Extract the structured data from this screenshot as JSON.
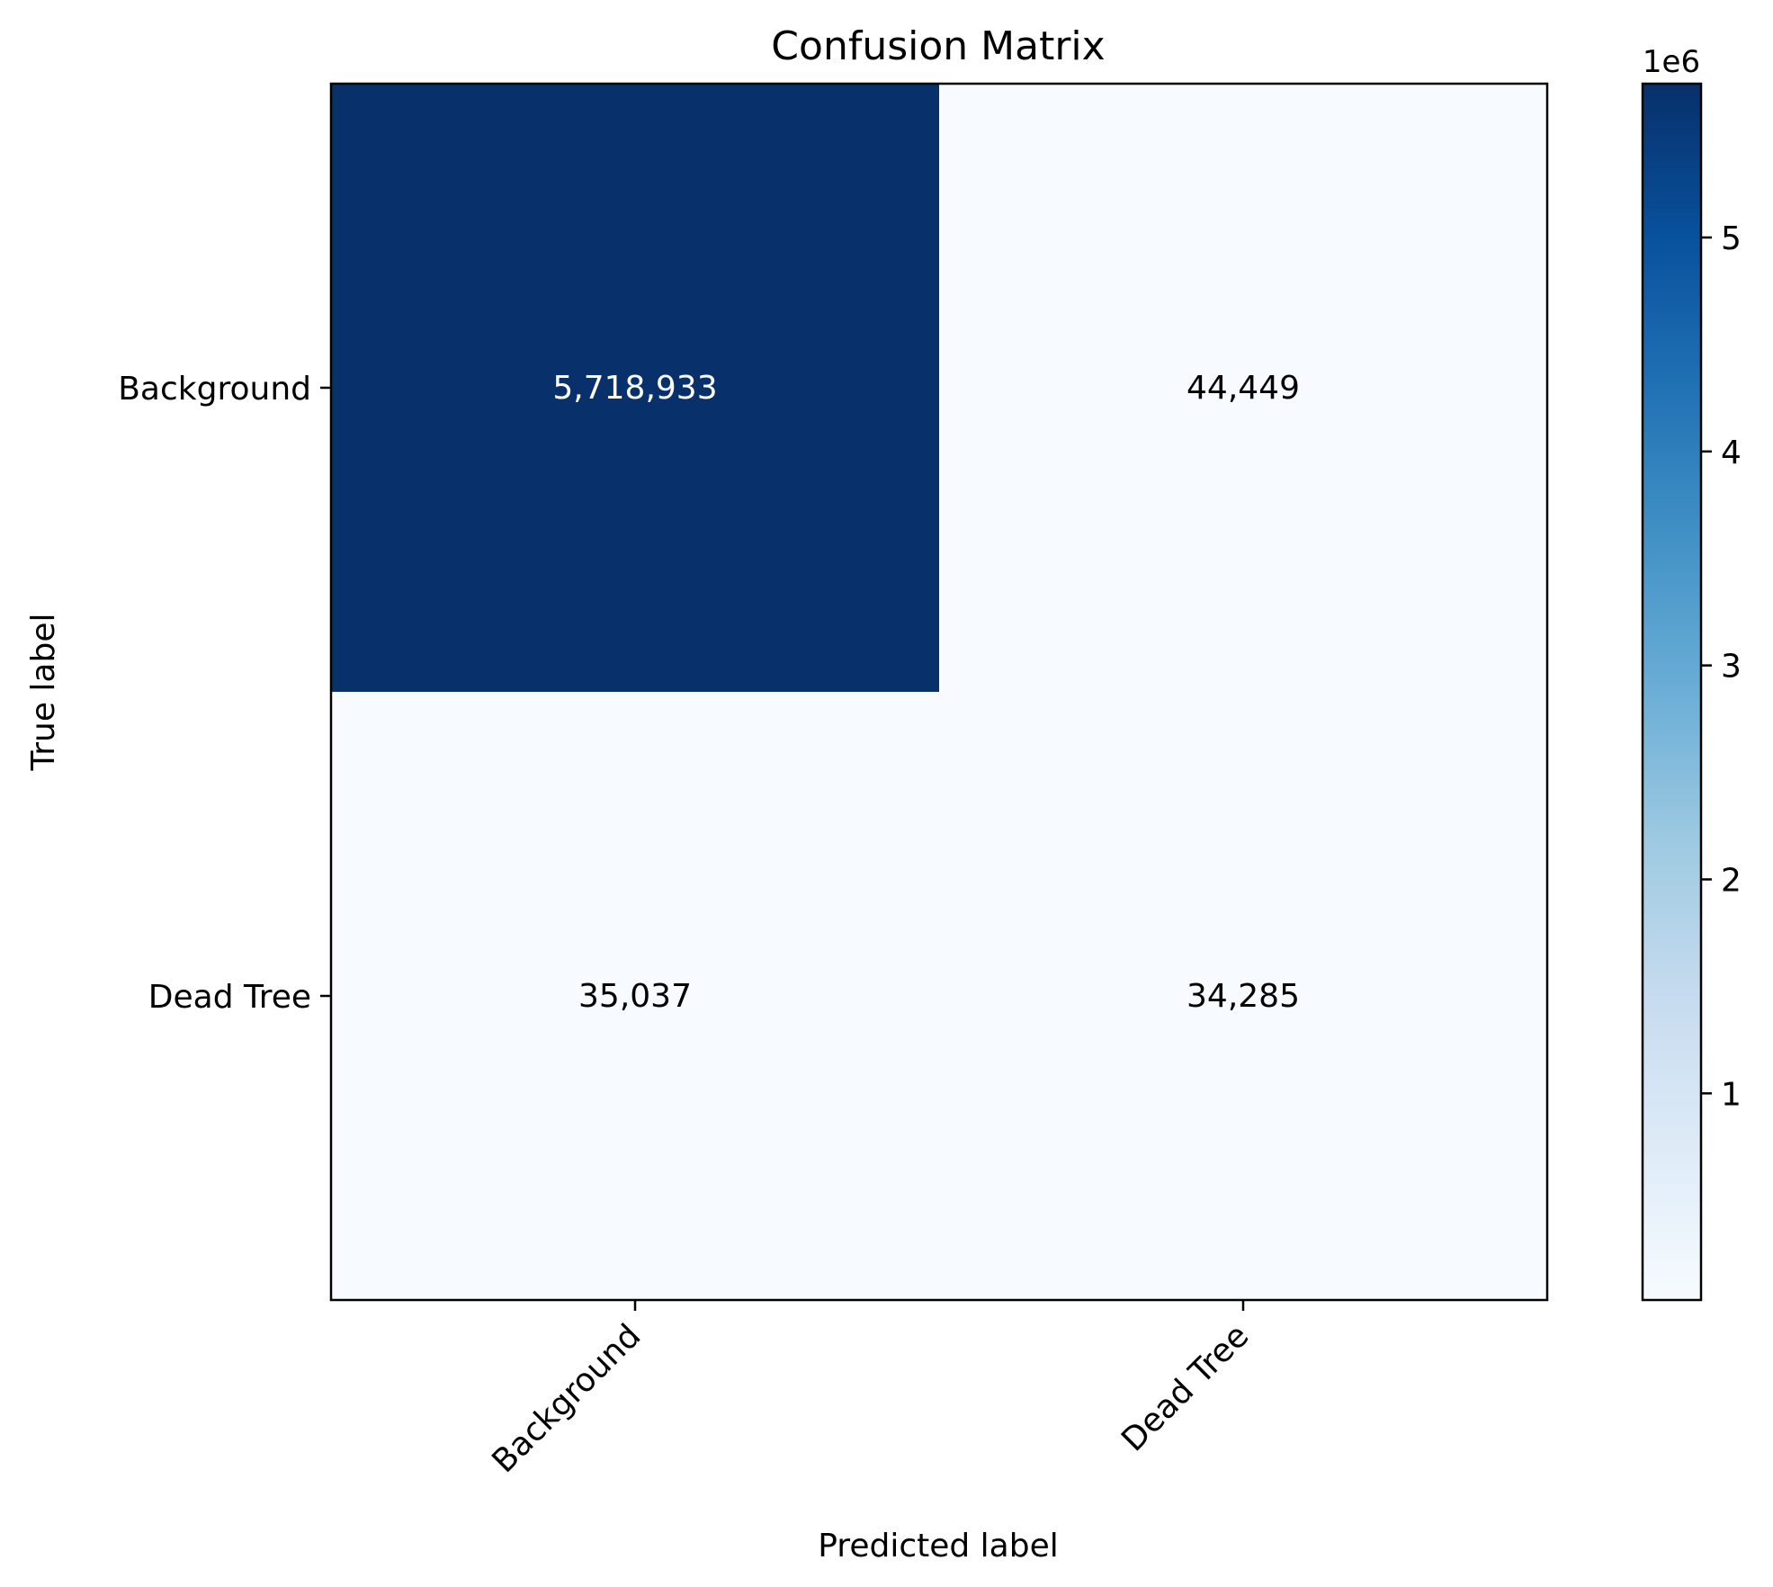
{
  "chart_data": {
    "type": "heatmap",
    "title": "Confusion Matrix",
    "xlabel": "Predicted label",
    "ylabel": "True label",
    "x_categories": [
      "Background",
      "Dead Tree"
    ],
    "y_categories": [
      "Background",
      "Dead Tree"
    ],
    "values": [
      [
        5718933,
        44449
      ],
      [
        35037,
        34285
      ]
    ],
    "cell_labels": [
      [
        "5,718,933",
        "44,449"
      ],
      [
        "35,037",
        "34,285"
      ]
    ],
    "colormap": "Blues",
    "colorbar": {
      "range": [
        34285,
        5718933
      ],
      "ticks": [
        1,
        2,
        3,
        4,
        5
      ],
      "tick_labels": [
        "1",
        "2",
        "3",
        "4",
        "5"
      ],
      "scale_label": "1e6"
    }
  }
}
